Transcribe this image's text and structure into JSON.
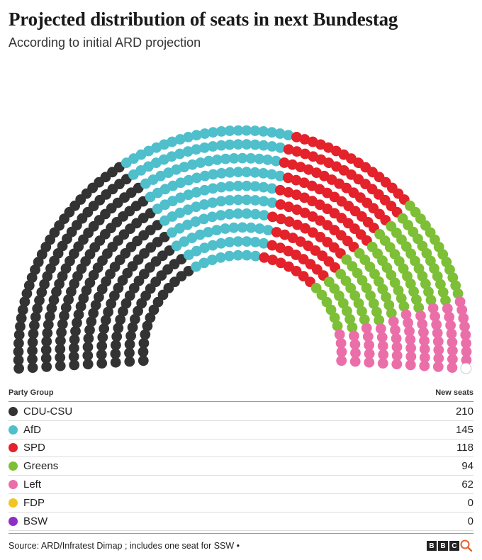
{
  "title": "Projected distribution of seats in next Bundestag",
  "subtitle": "According to initial ARD projection",
  "table": {
    "col_party": "Party Group",
    "col_seats": "New seats"
  },
  "source": "Source: ARD/Infratest Dimap ; includes one seat for SSW •",
  "logo": {
    "letters": [
      "B",
      "B",
      "C"
    ]
  },
  "chart_data": {
    "type": "parliament",
    "title": "Projected distribution of seats in next Bundestag",
    "total_seats": 630,
    "parties": [
      {
        "name": "CDU-CSU",
        "seats": 210,
        "color": "#333333"
      },
      {
        "name": "AfD",
        "seats": 145,
        "color": "#4ebfcb"
      },
      {
        "name": "SPD",
        "seats": 118,
        "color": "#e3222b"
      },
      {
        "name": "Greens",
        "seats": 94,
        "color": "#7dbf36"
      },
      {
        "name": "Left",
        "seats": 62,
        "color": "#ea6fa9"
      },
      {
        "name": "FDP",
        "seats": 0,
        "color": "#f2c523"
      },
      {
        "name": "BSW",
        "seats": 0,
        "color": "#8e2ec4"
      }
    ]
  }
}
